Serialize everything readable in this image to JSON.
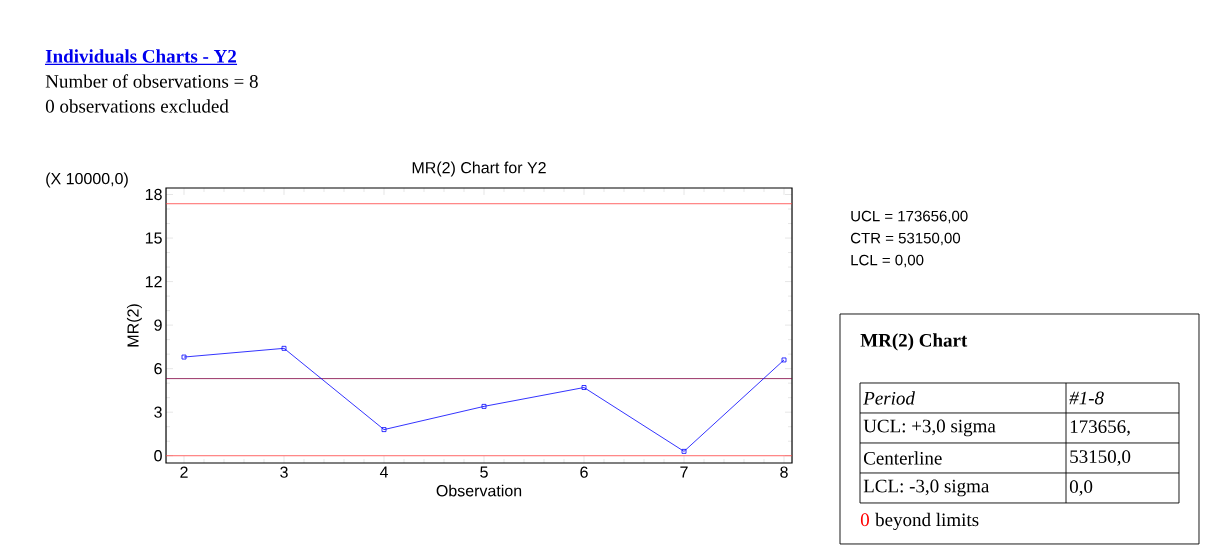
{
  "chart_data": {
    "type": "line",
    "title": "MR(2) Chart for Y2",
    "xlabel": "Observation",
    "ylabel": "MR(2)",
    "x": [
      2,
      3,
      4,
      5,
      6,
      7,
      8
    ],
    "series": [
      {
        "color": "#0000ff",
        "values": [
          6.8,
          7.4,
          1.8,
          3.4,
          4.7,
          0.3,
          6.6
        ]
      }
    ],
    "marker": "square",
    "line_style": "solid",
    "xlim": [
      1.82,
      8.08
    ],
    "ylim": [
      -0.5,
      18.45
    ],
    "xticks": [
      2,
      3,
      4,
      5,
      6,
      7,
      8
    ],
    "yticks": [
      0,
      3,
      6,
      9,
      12,
      15,
      18
    ],
    "ref_lines": [
      {
        "axis": "y",
        "value": 17.3656,
        "color": "#ff4040"
      },
      {
        "axis": "y",
        "value": 5.315,
        "color": "#800040"
      },
      {
        "axis": "y",
        "value": 0,
        "color": "#ff4040"
      }
    ],
    "annotations": [
      "Individuals Charts - Y2",
      "Number of observations = 8",
      "0 observations excluded",
      "(X 10000,0)",
      "UCL = 173656,00",
      "CTR = 53150,00",
      "LCL = 0,00",
      "MR(2) Chart",
      "Period",
      "#1-8",
      "UCL: +3,0 sigma",
      "173656,",
      "Centerline",
      "53150,0",
      "LCL: -3,0 sigma",
      "0,0",
      "0",
      "beyond limits"
    ]
  }
}
